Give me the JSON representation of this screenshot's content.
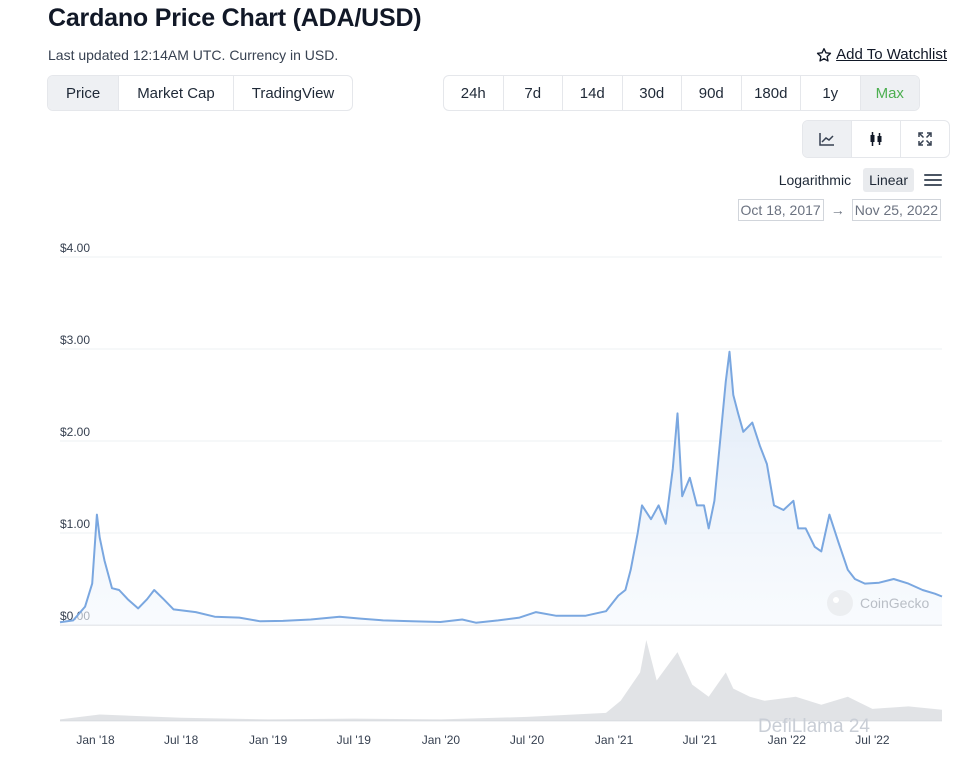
{
  "header": {
    "title": "Cardano Price Chart (ADA/USD)",
    "updated": "Last updated 12:14AM UTC. Currency in USD.",
    "watchlist": "Add To Watchlist"
  },
  "tabs": [
    "Price",
    "Market Cap",
    "TradingView"
  ],
  "active_tab": "Price",
  "ranges": [
    "24h",
    "7d",
    "14d",
    "30d",
    "90d",
    "180d",
    "1y",
    "Max"
  ],
  "active_range": "Max",
  "chart_tools": [
    "line-chart-icon",
    "candlestick-icon",
    "expand-icon"
  ],
  "scale": {
    "log": "Logarithmic",
    "linear": "Linear",
    "active": "Linear"
  },
  "date_range": {
    "from": "Oct 18, 2017",
    "arrow": "→",
    "to": "Nov 25, 2022"
  },
  "watermarks": {
    "coingecko": "CoinGecko",
    "overlay": "DefiLlama 24"
  },
  "colors": {
    "line": "#7aa7e0",
    "fill": "#edf3fb",
    "active_range": "#4caf50",
    "volume": "#c8ccd2"
  },
  "chart_data": {
    "type": "area",
    "title": "",
    "xlabel": "",
    "ylabel": "",
    "y_ticks": [
      "$0.00",
      "$1.00",
      "$2.00",
      "$3.00",
      "$4.00"
    ],
    "ylim": [
      0,
      4
    ],
    "x_ticks": [
      "Jan '18",
      "Jul '18",
      "Jan '19",
      "Jul '19",
      "Jan '20",
      "Jul '20",
      "Jan '21",
      "Jul '21",
      "Jan '22",
      "Jul '22"
    ],
    "grid": true,
    "series": [
      {
        "values": [
          [
            "2017-10-18",
            0.03
          ],
          [
            "2017-11-15",
            0.05
          ],
          [
            "2017-12-10",
            0.2
          ],
          [
            "2017-12-25",
            0.45
          ],
          [
            "2018-01-04",
            1.2
          ],
          [
            "2018-01-10",
            0.95
          ],
          [
            "2018-01-20",
            0.7
          ],
          [
            "2018-02-05",
            0.4
          ],
          [
            "2018-02-20",
            0.38
          ],
          [
            "2018-03-10",
            0.28
          ],
          [
            "2018-04-01",
            0.18
          ],
          [
            "2018-04-20",
            0.28
          ],
          [
            "2018-05-05",
            0.38
          ],
          [
            "2018-05-25",
            0.28
          ],
          [
            "2018-06-15",
            0.17
          ],
          [
            "2018-08-01",
            0.14
          ],
          [
            "2018-09-10",
            0.09
          ],
          [
            "2018-11-01",
            0.08
          ],
          [
            "2018-12-15",
            0.04
          ],
          [
            "2019-02-01",
            0.045
          ],
          [
            "2019-04-01",
            0.06
          ],
          [
            "2019-06-01",
            0.09
          ],
          [
            "2019-07-15",
            0.07
          ],
          [
            "2019-09-01",
            0.05
          ],
          [
            "2019-11-01",
            0.04
          ],
          [
            "2019-12-31",
            0.033
          ],
          [
            "2020-02-15",
            0.06
          ],
          [
            "2020-03-15",
            0.025
          ],
          [
            "2020-05-01",
            0.05
          ],
          [
            "2020-06-15",
            0.08
          ],
          [
            "2020-07-20",
            0.14
          ],
          [
            "2020-09-01",
            0.1
          ],
          [
            "2020-11-01",
            0.1
          ],
          [
            "2020-12-15",
            0.15
          ],
          [
            "2021-01-10",
            0.32
          ],
          [
            "2021-01-25",
            0.38
          ],
          [
            "2021-02-05",
            0.6
          ],
          [
            "2021-02-20",
            1.0
          ],
          [
            "2021-03-01",
            1.3
          ],
          [
            "2021-03-20",
            1.15
          ],
          [
            "2021-04-05",
            1.3
          ],
          [
            "2021-04-20",
            1.1
          ],
          [
            "2021-05-05",
            1.7
          ],
          [
            "2021-05-15",
            2.3
          ],
          [
            "2021-05-25",
            1.4
          ],
          [
            "2021-06-10",
            1.6
          ],
          [
            "2021-06-25",
            1.3
          ],
          [
            "2021-07-10",
            1.3
          ],
          [
            "2021-07-20",
            1.05
          ],
          [
            "2021-08-01",
            1.35
          ],
          [
            "2021-08-15",
            2.1
          ],
          [
            "2021-08-25",
            2.65
          ],
          [
            "2021-09-02",
            2.97
          ],
          [
            "2021-09-10",
            2.5
          ],
          [
            "2021-09-20",
            2.3
          ],
          [
            "2021-10-01",
            2.1
          ],
          [
            "2021-10-20",
            2.2
          ],
          [
            "2021-11-05",
            1.95
          ],
          [
            "2021-11-20",
            1.75
          ],
          [
            "2021-12-05",
            1.3
          ],
          [
            "2021-12-25",
            1.25
          ],
          [
            "2022-01-15",
            1.35
          ],
          [
            "2022-01-25",
            1.05
          ],
          [
            "2022-02-10",
            1.05
          ],
          [
            "2022-03-01",
            0.85
          ],
          [
            "2022-03-15",
            0.8
          ],
          [
            "2022-04-01",
            1.2
          ],
          [
            "2022-04-20",
            0.9
          ],
          [
            "2022-05-10",
            0.6
          ],
          [
            "2022-05-25",
            0.5
          ],
          [
            "2022-06-15",
            0.45
          ],
          [
            "2022-07-15",
            0.46
          ],
          [
            "2022-08-15",
            0.5
          ],
          [
            "2022-09-15",
            0.45
          ],
          [
            "2022-10-15",
            0.38
          ],
          [
            "2022-11-10",
            0.34
          ],
          [
            "2022-11-25",
            0.31
          ]
        ]
      }
    ],
    "volume": [
      [
        "2017-10-18",
        0.02
      ],
      [
        "2018-01-10",
        0.08
      ],
      [
        "2018-07-01",
        0.04
      ],
      [
        "2019-01-01",
        0.02
      ],
      [
        "2019-07-01",
        0.03
      ],
      [
        "2020-01-01",
        0.02
      ],
      [
        "2020-07-01",
        0.05
      ],
      [
        "2020-12-15",
        0.1
      ],
      [
        "2021-01-15",
        0.25
      ],
      [
        "2021-02-25",
        0.6
      ],
      [
        "2021-03-10",
        1.0
      ],
      [
        "2021-04-01",
        0.5
      ],
      [
        "2021-05-15",
        0.85
      ],
      [
        "2021-06-15",
        0.45
      ],
      [
        "2021-07-20",
        0.3
      ],
      [
        "2021-08-25",
        0.6
      ],
      [
        "2021-09-10",
        0.4
      ],
      [
        "2021-10-15",
        0.3
      ],
      [
        "2021-11-15",
        0.25
      ],
      [
        "2022-01-20",
        0.3
      ],
      [
        "2022-03-15",
        0.2
      ],
      [
        "2022-05-10",
        0.3
      ],
      [
        "2022-07-01",
        0.15
      ],
      [
        "2022-09-15",
        0.18
      ],
      [
        "2022-11-25",
        0.14
      ]
    ]
  }
}
